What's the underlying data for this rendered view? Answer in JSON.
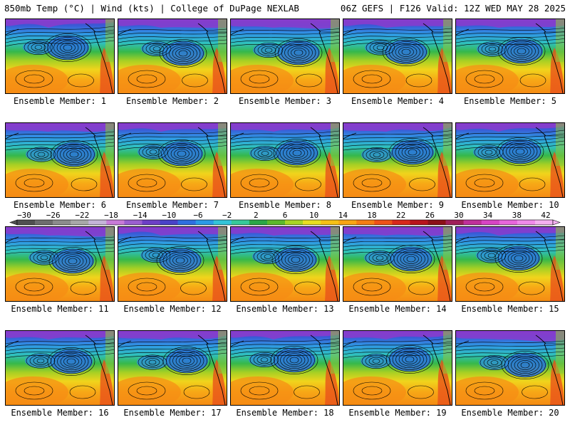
{
  "header": {
    "left": "850mb Temp (°C) | Wind (kts) | College of DuPage NEXLAB",
    "right": "06Z GEFS | F126 Valid: 12Z WED MAY 28 2025"
  },
  "members": [
    "Ensemble Member: 1",
    "Ensemble Member: 2",
    "Ensemble Member: 3",
    "Ensemble Member: 4",
    "Ensemble Member: 5",
    "Ensemble Member: 6",
    "Ensemble Member: 7",
    "Ensemble Member: 8",
    "Ensemble Member: 9",
    "Ensemble Member: 10",
    "Ensemble Member: 11",
    "Ensemble Member: 12",
    "Ensemble Member: 13",
    "Ensemble Member: 14",
    "Ensemble Member: 15",
    "Ensemble Member: 16",
    "Ensemble Member: 17",
    "Ensemble Member: 18",
    "Ensemble Member: 19",
    "Ensemble Member: 20"
  ],
  "colorbar": {
    "ticks": [
      "−30",
      "−26",
      "−22",
      "−18",
      "−14",
      "−10",
      "−6",
      "−2",
      "2",
      "6",
      "10",
      "14",
      "18",
      "22",
      "26",
      "30",
      "34",
      "38",
      "42"
    ],
    "colors": [
      "#505050",
      "#6e6e6e",
      "#8c8c8c",
      "#a8a8a8",
      "#c4b4d8",
      "#c87ad8",
      "#9b5fd0",
      "#6d3fc6",
      "#4a43c8",
      "#2f6fe0",
      "#2b9ae6",
      "#33c4d8",
      "#36c99a",
      "#2aa748",
      "#5cb82c",
      "#a8d424",
      "#e8e020",
      "#f6c016",
      "#f8a514",
      "#f47d14",
      "#ee5218",
      "#d8281c",
      "#b8141c",
      "#8c1018",
      "#a0205a",
      "#c0309a",
      "#d844c4",
      "#e866dc",
      "#f08aea",
      "#f4b0f0"
    ]
  },
  "style": {
    "contour_color": "#000000",
    "coast_color": "#000000"
  }
}
